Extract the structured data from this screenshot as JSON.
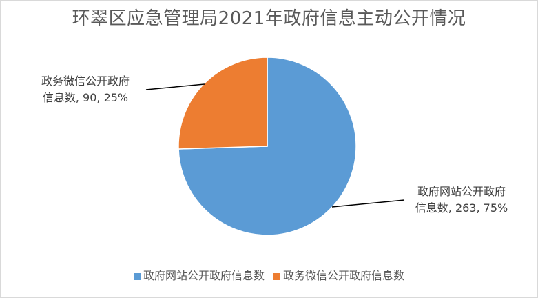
{
  "chart_data": {
    "type": "pie",
    "title": "环翠区应急管理局2021年政府信息主动公开情况",
    "slices": [
      {
        "name": "政府网站公开政府信息数",
        "label_line1": "政府网站公开政府",
        "label_line2": "信息数, 263, 75%",
        "value": 263,
        "percent": 75,
        "color": "#5b9bd5"
      },
      {
        "name": "政务微信公开政府信息数",
        "label_line1": "政务微信公开政府",
        "label_line2": "信息数, 90, 25%",
        "value": 90,
        "percent": 25,
        "color": "#ed7d31"
      }
    ],
    "legend_position": "bottom"
  }
}
